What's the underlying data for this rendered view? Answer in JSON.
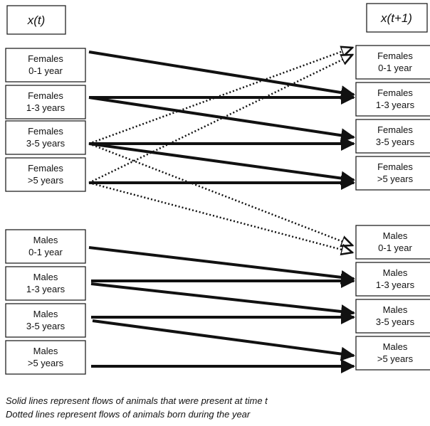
{
  "header": {
    "left": "x(t)",
    "right": "x(t+1)"
  },
  "left_nodes": [
    [
      "Females",
      "0-1 year"
    ],
    [
      "Females",
      "1-3 years"
    ],
    [
      "Females",
      "3-5 years"
    ],
    [
      "Females",
      ">5 years"
    ],
    [
      "Males",
      "0-1 year"
    ],
    [
      "Males",
      "1-3 years"
    ],
    [
      "Males",
      "3-5 years"
    ],
    [
      "Males",
      ">5 years"
    ]
  ],
  "right_nodes": [
    [
      "Females",
      "0-1 year"
    ],
    [
      "Females",
      "1-3 years"
    ],
    [
      "Females",
      "3-5 years"
    ],
    [
      "Females",
      ">5 years"
    ],
    [
      "Males",
      "0-1 year"
    ],
    [
      "Males",
      "1-3 years"
    ],
    [
      "Males",
      "3-5 years"
    ],
    [
      "Males",
      ">5 years"
    ]
  ],
  "legend": [
    "Solid lines represent flows of animals that were present at time t",
    "Dotted lines represent flows of animals born during the year"
  ]
}
